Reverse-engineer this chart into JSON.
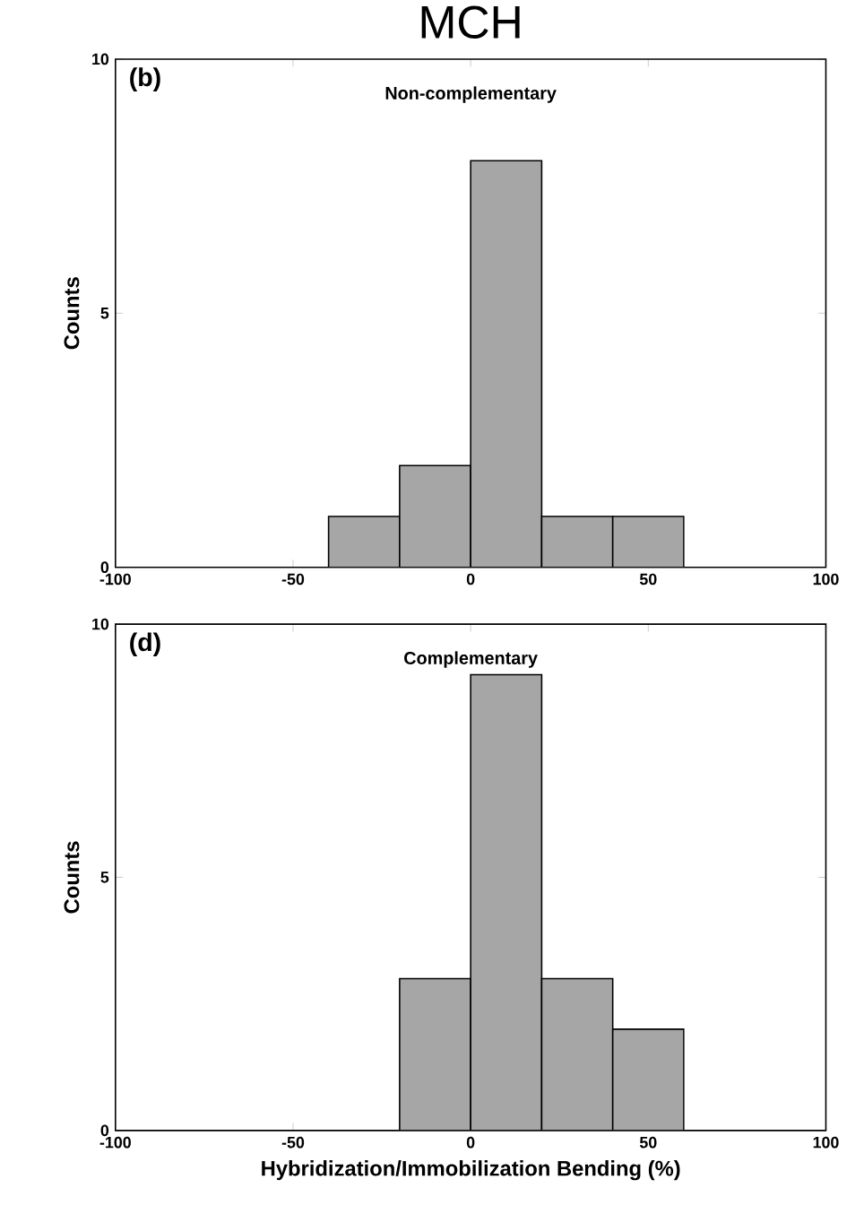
{
  "chart_data": [
    {
      "type": "histogram",
      "title": "MCH",
      "ylabel": "Counts",
      "annotations": [
        "(b)",
        "Non-complementary"
      ],
      "bins": [
        -40,
        -20,
        0,
        20,
        40,
        60
      ],
      "values": [
        1,
        2,
        8,
        1,
        1
      ],
      "color": "#000000",
      "xlim": [
        -100,
        100
      ],
      "xticks": [
        -100,
        -50,
        0,
        50,
        100
      ],
      "ylim": [
        0,
        10
      ],
      "yticks": [
        0,
        5,
        10
      ]
    },
    {
      "type": "histogram",
      "xlabel": "Hybridization/Immobilization Bending (%)",
      "ylabel": "Counts",
      "annotations": [
        "(d)",
        "Complementary"
      ],
      "bins": [
        -20,
        0,
        20,
        40,
        60
      ],
      "values": [
        3,
        9,
        3,
        2
      ],
      "color": "#000000",
      "xlim": [
        -100,
        100
      ],
      "xticks": [
        -100,
        -50,
        0,
        50,
        100
      ],
      "ylim": [
        0,
        10
      ],
      "yticks": [
        0,
        5,
        10
      ]
    }
  ]
}
